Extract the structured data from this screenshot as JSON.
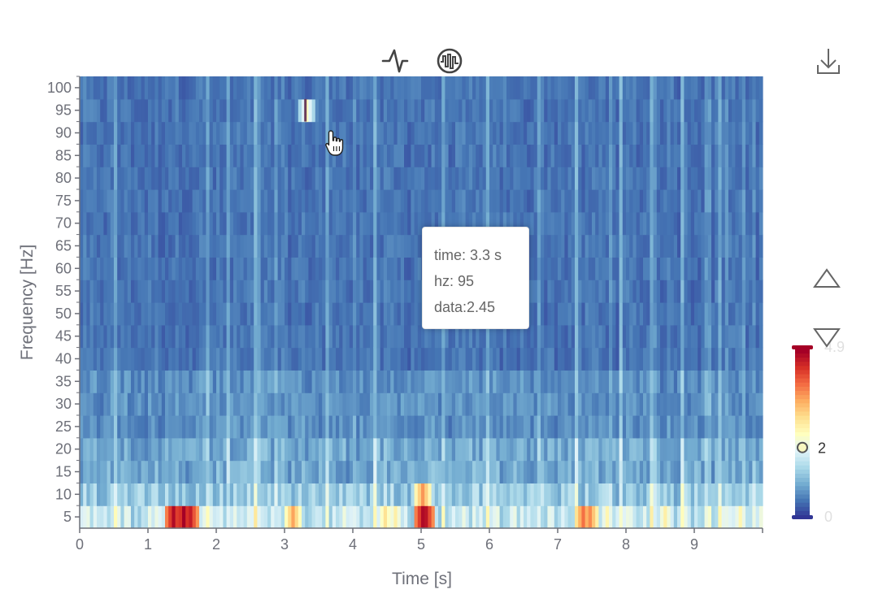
{
  "chart_data": {
    "type": "heatmap",
    "title": "",
    "xlabel": "Time [s]",
    "ylabel": "Frequency [Hz]",
    "x_ticks": [
      "0",
      "1",
      "2",
      "3",
      "4",
      "5",
      "6",
      "7",
      "8",
      "9"
    ],
    "y_ticks": [
      "5",
      "10",
      "15",
      "20",
      "25",
      "30",
      "35",
      "40",
      "45",
      "50",
      "55",
      "60",
      "65",
      "70",
      "75",
      "80",
      "85",
      "90",
      "95",
      "100"
    ],
    "xlim": [
      0,
      10
    ],
    "ylim": [
      2.5,
      102.5
    ],
    "time_step": 0.05,
    "frequency_step": 5,
    "value_range": [
      0,
      4.9
    ],
    "visual_map": {
      "max_label": "4.9",
      "min_label": "0",
      "handle_value": 2,
      "handle_label": "2",
      "colors": [
        "#313695",
        "#4575b4",
        "#74add1",
        "#abd9e9",
        "#e0f3f8",
        "#ffffbf",
        "#fee090",
        "#fdae61",
        "#f46d43",
        "#d73027",
        "#a50026"
      ]
    },
    "hot_spots": [
      {
        "time": 1.35,
        "frequency": 5,
        "value": 4.8
      },
      {
        "time": 1.5,
        "frequency": 5,
        "value": 4.9
      },
      {
        "time": 1.6,
        "frequency": 5,
        "value": 4.6
      },
      {
        "time": 3.1,
        "frequency": 5,
        "value": 3.5
      },
      {
        "time": 4.45,
        "frequency": 5,
        "value": 2.9
      },
      {
        "time": 4.6,
        "frequency": 5,
        "value": 2.7
      },
      {
        "time": 5.0,
        "frequency": 5,
        "value": 4.8
      },
      {
        "time": 5.05,
        "frequency": 5,
        "value": 4.7
      },
      {
        "time": 5.0,
        "frequency": 10,
        "value": 3.6
      },
      {
        "time": 7.35,
        "frequency": 5,
        "value": 3.9
      },
      {
        "time": 7.45,
        "frequency": 5,
        "value": 3.7
      },
      {
        "time": 7.7,
        "frequency": 5,
        "value": 2.6
      },
      {
        "time": 8.55,
        "frequency": 5,
        "value": 2.7
      },
      {
        "time": 9.65,
        "frequency": 5,
        "value": 2.6
      },
      {
        "time": 3.3,
        "frequency": 95,
        "value": 2.45
      }
    ],
    "tooltip": {
      "time_line": "time: 3.3 s",
      "hz_line": "hz: 95",
      "data_line": "data:2.45"
    },
    "grid": false,
    "legend": "right-bottom"
  },
  "toolbox": {
    "line_icon": "line-chart-icon",
    "signal_icon": "waveform-icon",
    "download_icon": "download-icon",
    "up_icon": "triangle-up-icon",
    "down_icon": "triangle-down-icon"
  }
}
